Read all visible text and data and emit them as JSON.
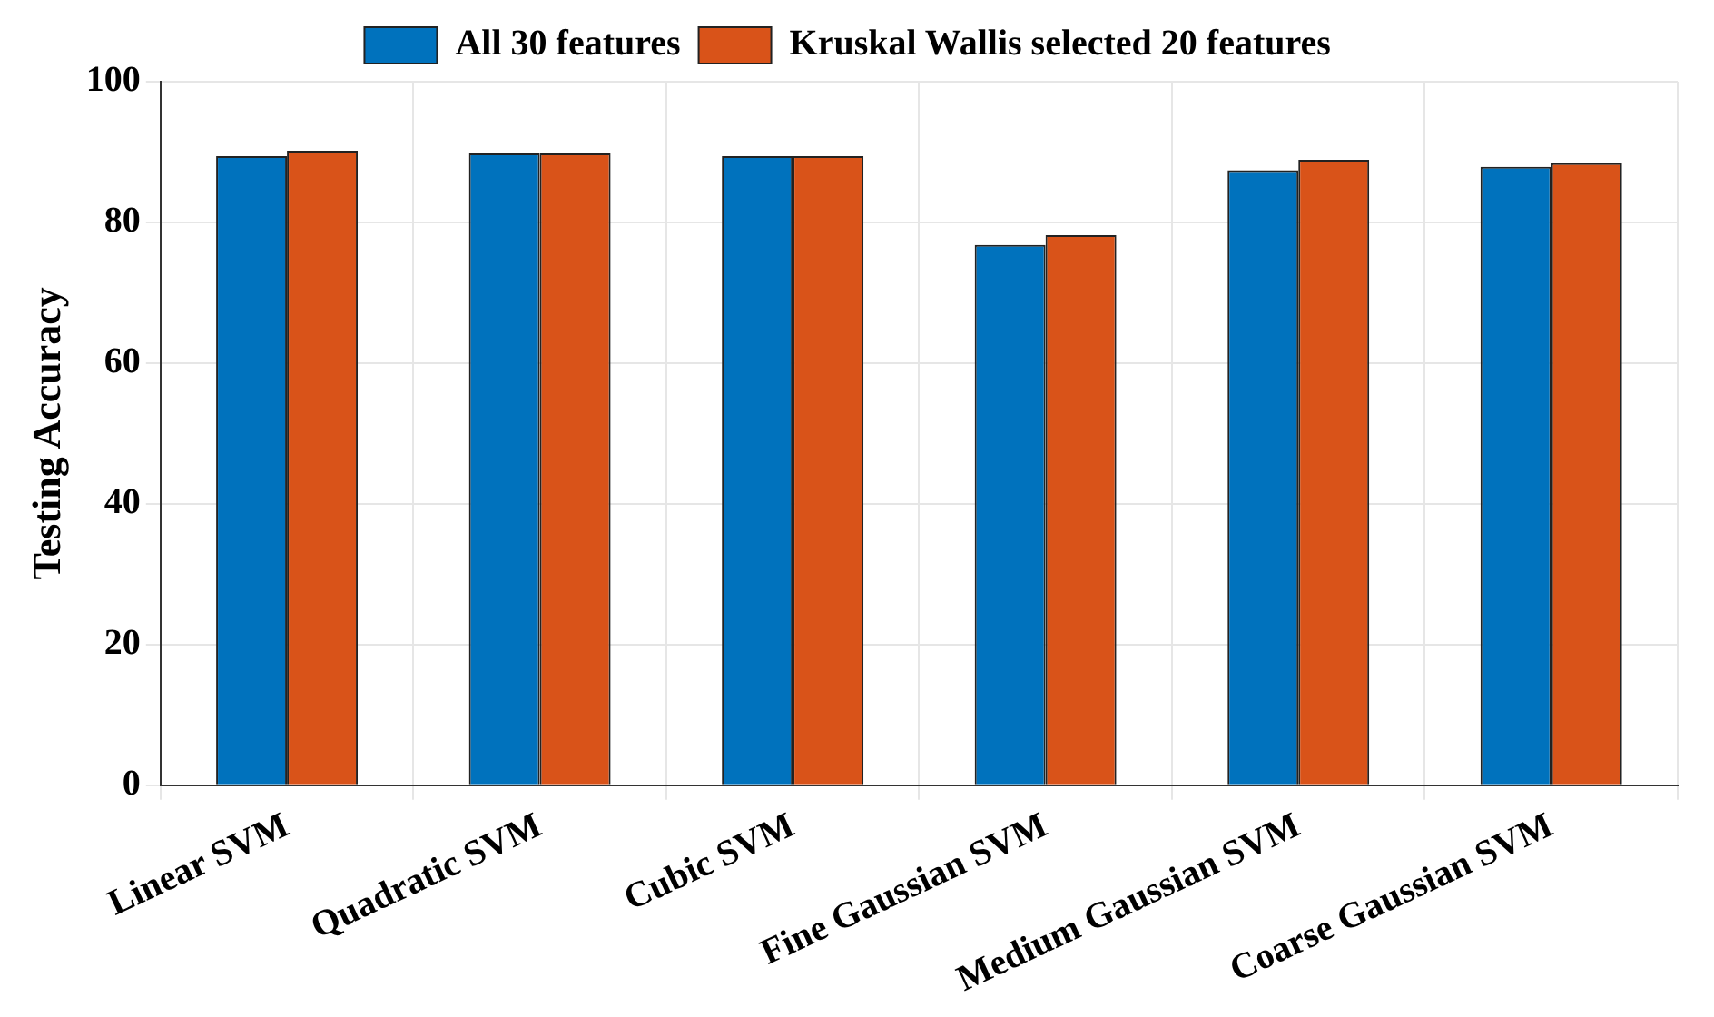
{
  "chart_data": {
    "type": "bar",
    "ylabel": "Testing Accuracy",
    "categories": [
      "Linear SVM",
      "Quadratic SVM",
      "Cubic SVM",
      "Fine Gaussian SVM",
      "Medium Gaussian SVM",
      "Coarse Gaussian SVM"
    ],
    "series": [
      {
        "name": "All 30 features",
        "color": "#0072bd",
        "values": [
          89.4,
          89.8,
          89.4,
          76.8,
          87.4,
          87.9
        ]
      },
      {
        "name": "Kruskal Wallis selected 20 features",
        "color": "#d95319",
        "values": [
          90.2,
          89.8,
          89.4,
          78.2,
          88.9,
          88.4
        ]
      }
    ],
    "ylim": [
      0,
      100
    ],
    "yticks": [
      0,
      20,
      40,
      60,
      80,
      100
    ],
    "grid": true,
    "legend": "top"
  }
}
